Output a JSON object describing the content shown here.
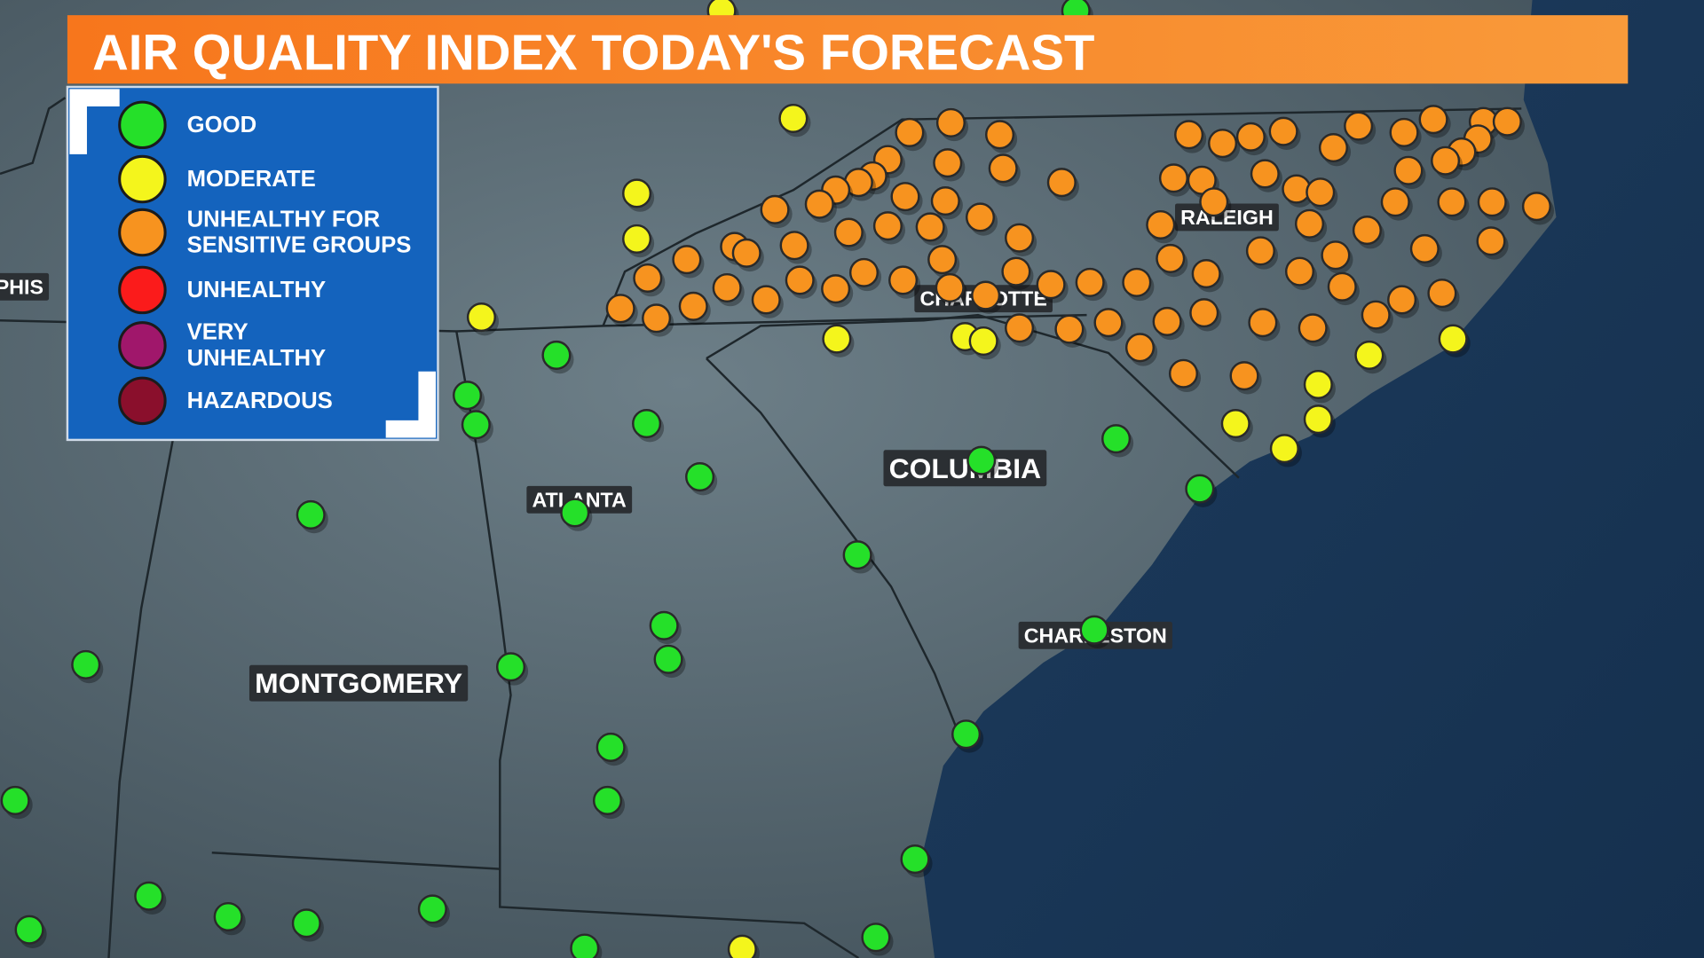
{
  "title": "AIR QUALITY INDEX TODAY'S FORECAST",
  "legend": [
    {
      "label_lines": [
        "GOOD"
      ],
      "color": "#25e029"
    },
    {
      "label_lines": [
        "MODERATE"
      ],
      "color": "#f4f51c"
    },
    {
      "label_lines": [
        "UNHEALTHY FOR",
        "SENSITIVE GROUPS"
      ],
      "color": "#f7931f"
    },
    {
      "label_lines": [
        "UNHEALTHY"
      ],
      "color": "#fb1b1b"
    },
    {
      "label_lines": [
        "VERY",
        "UNHEALTHY"
      ],
      "color": "#a0176b"
    },
    {
      "label_lines": [
        "HAZARDOUS"
      ],
      "color": "#8a0f2c"
    }
  ],
  "cities": [
    "MEMPHIS",
    "ATLANTA",
    "COLUMBIA",
    "CHARLOTTE",
    "RALEIGH",
    "CHARLESTON",
    "MONTGOMERY"
  ]
}
